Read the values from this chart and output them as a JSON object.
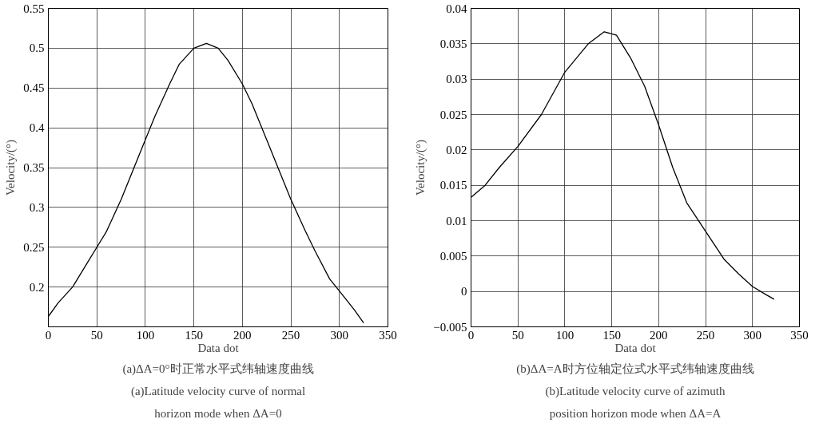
{
  "chart_data": [
    {
      "type": "line",
      "xlabel": "Data dot",
      "ylabel": "Velocity/(°)",
      "xlim": [
        0,
        350
      ],
      "ylim": [
        0.15,
        0.55
      ],
      "xticks": [
        0,
        50,
        100,
        150,
        200,
        250,
        300,
        350
      ],
      "yticks": [
        0.2,
        0.25,
        0.3,
        0.35,
        0.4,
        0.45,
        0.5,
        0.55
      ],
      "grid": true,
      "line_style": "solid",
      "series": [
        {
          "color": "#000000",
          "x": [
            0,
            10,
            25,
            40,
            50,
            60,
            75,
            90,
            100,
            110,
            125,
            135,
            150,
            163,
            175,
            185,
            200,
            210,
            225,
            240,
            250,
            265,
            275,
            290,
            300,
            315,
            325
          ],
          "values": [
            0.163,
            0.18,
            0.2,
            0.23,
            0.25,
            0.27,
            0.31,
            0.355,
            0.385,
            0.415,
            0.455,
            0.48,
            0.5,
            0.506,
            0.5,
            0.485,
            0.455,
            0.43,
            0.385,
            0.34,
            0.31,
            0.27,
            0.245,
            0.21,
            0.195,
            0.172,
            0.155
          ]
        }
      ],
      "annotations": [
        "(a)ΔA=0°时正常水平式纬轴速度曲线",
        "(a)Latitude velocity curve of normal",
        "horizon mode when ΔA=0"
      ]
    },
    {
      "type": "line",
      "xlabel": "Data dot",
      "ylabel": "Velocity/(°)",
      "xlim": [
        0,
        350
      ],
      "ylim": [
        -0.005,
        0.04
      ],
      "xticks": [
        0,
        50,
        100,
        150,
        200,
        250,
        300,
        350
      ],
      "yticks": [
        {
          "value": -0.005,
          "label": "−0.005"
        },
        0,
        0.005,
        0.01,
        0.015,
        0.02,
        0.025,
        0.03,
        0.035,
        0.04
      ],
      "grid": true,
      "line_style": "solid",
      "series": [
        {
          "color": "#000000",
          "x": [
            0,
            15,
            30,
            50,
            75,
            100,
            125,
            142,
            155,
            170,
            185,
            200,
            215,
            230,
            250,
            270,
            285,
            300,
            315,
            323
          ],
          "values": [
            0.0133,
            0.015,
            0.0175,
            0.0205,
            0.025,
            0.031,
            0.035,
            0.0367,
            0.0362,
            0.033,
            0.029,
            0.0235,
            0.0175,
            0.0125,
            0.0085,
            0.0045,
            0.0025,
            0.0007,
            -0.0005,
            -0.0011
          ]
        }
      ],
      "annotations": [
        "(b)ΔA=A时方位轴定位式水平式纬轴速度曲线",
        "(b)Latitude velocity curve of azimuth",
        "position horizon mode when ΔA=A"
      ]
    }
  ]
}
